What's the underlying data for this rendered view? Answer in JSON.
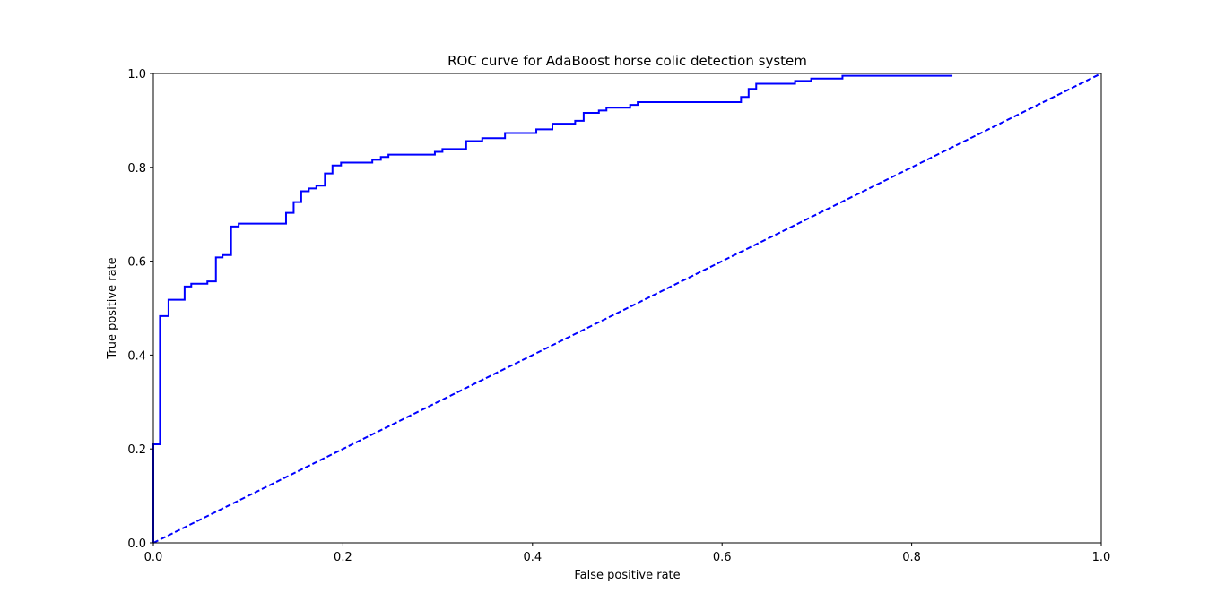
{
  "colors": {
    "background": "#ffffff",
    "roc_line": "#0000ff",
    "diagonal": "#0000ff",
    "axes": "#000000"
  },
  "chart_data": {
    "type": "line",
    "title": "ROC curve for AdaBoost horse colic detection system",
    "xlabel": "False positive rate",
    "ylabel": "True positive rate",
    "xlim": [
      0.0,
      1.0
    ],
    "ylim": [
      0.0,
      1.0
    ],
    "xticks": [
      "0.0",
      "0.2",
      "0.4",
      "0.6",
      "0.8",
      "1.0"
    ],
    "yticks": [
      "0.0",
      "0.2",
      "0.4",
      "0.6",
      "0.8",
      "1.0"
    ],
    "grid": false,
    "legend": null,
    "series": [
      {
        "style": "solid-step",
        "color": "#0000ff",
        "points": [
          [
            0.0,
            0.0
          ],
          [
            0.0,
            0.21
          ],
          [
            0.007,
            0.21
          ],
          [
            0.007,
            0.483
          ],
          [
            0.016,
            0.483
          ],
          [
            0.016,
            0.518
          ],
          [
            0.033,
            0.518
          ],
          [
            0.033,
            0.546
          ],
          [
            0.04,
            0.546
          ],
          [
            0.04,
            0.552
          ],
          [
            0.057,
            0.552
          ],
          [
            0.057,
            0.557
          ],
          [
            0.066,
            0.557
          ],
          [
            0.066,
            0.608
          ],
          [
            0.073,
            0.608
          ],
          [
            0.073,
            0.613
          ],
          [
            0.082,
            0.613
          ],
          [
            0.082,
            0.674
          ],
          [
            0.09,
            0.674
          ],
          [
            0.09,
            0.68
          ],
          [
            0.14,
            0.68
          ],
          [
            0.14,
            0.703
          ],
          [
            0.148,
            0.703
          ],
          [
            0.148,
            0.726
          ],
          [
            0.156,
            0.726
          ],
          [
            0.156,
            0.749
          ],
          [
            0.164,
            0.749
          ],
          [
            0.164,
            0.755
          ],
          [
            0.172,
            0.755
          ],
          [
            0.172,
            0.761
          ],
          [
            0.181,
            0.761
          ],
          [
            0.181,
            0.787
          ],
          [
            0.189,
            0.787
          ],
          [
            0.189,
            0.804
          ],
          [
            0.198,
            0.804
          ],
          [
            0.198,
            0.81
          ],
          [
            0.231,
            0.81
          ],
          [
            0.231,
            0.816
          ],
          [
            0.24,
            0.816
          ],
          [
            0.24,
            0.822
          ],
          [
            0.248,
            0.822
          ],
          [
            0.248,
            0.827
          ],
          [
            0.297,
            0.827
          ],
          [
            0.297,
            0.833
          ],
          [
            0.305,
            0.833
          ],
          [
            0.305,
            0.839
          ],
          [
            0.33,
            0.839
          ],
          [
            0.33,
            0.856
          ],
          [
            0.347,
            0.856
          ],
          [
            0.347,
            0.862
          ],
          [
            0.371,
            0.862
          ],
          [
            0.371,
            0.873
          ],
          [
            0.404,
            0.873
          ],
          [
            0.404,
            0.881
          ],
          [
            0.421,
            0.881
          ],
          [
            0.421,
            0.893
          ],
          [
            0.445,
            0.893
          ],
          [
            0.445,
            0.899
          ],
          [
            0.454,
            0.899
          ],
          [
            0.454,
            0.916
          ],
          [
            0.47,
            0.916
          ],
          [
            0.47,
            0.921
          ],
          [
            0.478,
            0.921
          ],
          [
            0.478,
            0.927
          ],
          [
            0.503,
            0.927
          ],
          [
            0.503,
            0.933
          ],
          [
            0.511,
            0.933
          ],
          [
            0.511,
            0.939
          ],
          [
            0.62,
            0.939
          ],
          [
            0.62,
            0.95
          ],
          [
            0.628,
            0.95
          ],
          [
            0.628,
            0.967
          ],
          [
            0.636,
            0.967
          ],
          [
            0.636,
            0.978
          ],
          [
            0.677,
            0.978
          ],
          [
            0.677,
            0.984
          ],
          [
            0.694,
            0.984
          ],
          [
            0.694,
            0.989
          ],
          [
            0.727,
            0.989
          ],
          [
            0.727,
            0.995
          ],
          [
            0.843,
            0.995
          ]
        ]
      },
      {
        "style": "dashed",
        "color": "#0000ff",
        "points": [
          [
            0.0,
            0.0
          ],
          [
            1.0,
            1.0
          ]
        ]
      }
    ]
  }
}
